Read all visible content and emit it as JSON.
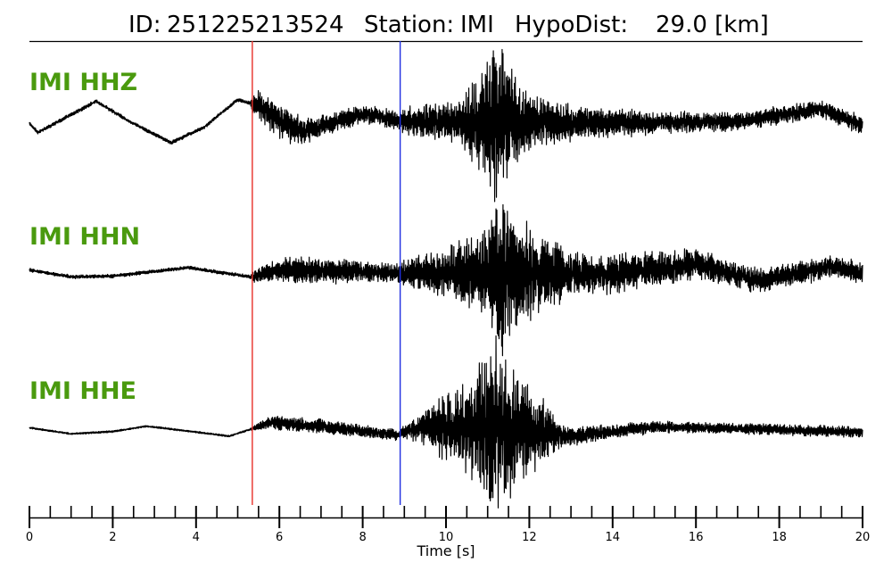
{
  "title": {
    "id_label": "ID:",
    "id_value": "251225213524",
    "station_label": "Station:",
    "station_value": "IMI",
    "hypo_label": "HypoDist:",
    "hypo_value": "29.0 [km]"
  },
  "colors": {
    "label": "#4a9a0e",
    "trace": "#000000",
    "p_pick": "#e8302a",
    "s_pick": "#1f2fe0"
  },
  "chart_data": {
    "type": "line",
    "xlabel": "Time [s]",
    "xlim": [
      0,
      20
    ],
    "major_ticks": [
      0,
      2,
      4,
      6,
      8,
      10,
      12,
      14,
      16,
      18,
      20
    ],
    "minor_tick_step": 0.5,
    "grid": false,
    "picks": [
      {
        "phase": "P",
        "time": 5.35,
        "color": "#e8302a"
      },
      {
        "phase": "S",
        "time": 8.9,
        "color": "#1f2fe0"
      }
    ],
    "series": [
      {
        "name": "IMI HHZ",
        "envelope": [
          [
            0,
            0.02
          ],
          [
            5.3,
            0.02
          ],
          [
            5.4,
            0.16
          ],
          [
            6.2,
            0.2
          ],
          [
            7,
            0.12
          ],
          [
            8.8,
            0.1
          ],
          [
            9,
            0.16
          ],
          [
            10.2,
            0.22
          ],
          [
            10.8,
            0.5
          ],
          [
            11.2,
            1.0
          ],
          [
            11.6,
            0.55
          ],
          [
            12.2,
            0.3
          ],
          [
            13,
            0.2
          ],
          [
            15,
            0.12
          ],
          [
            17,
            0.1
          ],
          [
            20,
            0.1
          ]
        ],
        "long_period": [
          [
            0,
            0
          ],
          [
            0.2,
            -0.12
          ],
          [
            0.8,
            0.05
          ],
          [
            1.6,
            0.28
          ],
          [
            2.4,
            0.02
          ],
          [
            3.4,
            -0.25
          ],
          [
            4.2,
            -0.05
          ],
          [
            5.0,
            0.3
          ],
          [
            5.5,
            0.22
          ],
          [
            6.5,
            -0.12
          ],
          [
            8.0,
            0.12
          ],
          [
            9.0,
            0.02
          ],
          [
            12.0,
            0.02
          ],
          [
            14.0,
            0.0
          ],
          [
            17.0,
            0.02
          ],
          [
            19.0,
            0.18
          ],
          [
            20.0,
            -0.03
          ]
        ]
      },
      {
        "name": "IMI HHN",
        "envelope": [
          [
            0,
            0.02
          ],
          [
            5.3,
            0.02
          ],
          [
            5.4,
            0.08
          ],
          [
            6.5,
            0.16
          ],
          [
            8.8,
            0.1
          ],
          [
            9,
            0.14
          ],
          [
            10.2,
            0.3
          ],
          [
            11,
            0.55
          ],
          [
            11.3,
            1.0
          ],
          [
            11.8,
            0.62
          ],
          [
            12.4,
            0.42
          ],
          [
            13.2,
            0.22
          ],
          [
            15,
            0.2
          ],
          [
            16,
            0.18
          ],
          [
            17,
            0.14
          ],
          [
            20,
            0.12
          ]
        ],
        "long_period": [
          [
            0,
            0.04
          ],
          [
            1,
            -0.05
          ],
          [
            2,
            -0.04
          ],
          [
            3,
            0.02
          ],
          [
            3.8,
            0.07
          ],
          [
            5.3,
            -0.05
          ],
          [
            6,
            0.04
          ],
          [
            9,
            0.0
          ],
          [
            12,
            0.0
          ],
          [
            14,
            -0.02
          ],
          [
            16,
            0.12
          ],
          [
            17.5,
            -0.1
          ],
          [
            19.2,
            0.08
          ],
          [
            20,
            0.0
          ]
        ]
      },
      {
        "name": "IMI HHE",
        "envelope": [
          [
            0,
            0.01
          ],
          [
            5.3,
            0.01
          ],
          [
            5.4,
            0.03
          ],
          [
            6,
            0.09
          ],
          [
            7,
            0.08
          ],
          [
            8.8,
            0.06
          ],
          [
            9,
            0.07
          ],
          [
            9.8,
            0.3
          ],
          [
            10.6,
            0.55
          ],
          [
            11.2,
            1.0
          ],
          [
            11.6,
            0.7
          ],
          [
            12.2,
            0.42
          ],
          [
            12.8,
            0.12
          ],
          [
            14,
            0.08
          ],
          [
            16,
            0.06
          ],
          [
            20,
            0.06
          ]
        ],
        "long_period": [
          [
            0,
            0.03
          ],
          [
            1,
            -0.05
          ],
          [
            2,
            -0.02
          ],
          [
            2.8,
            0.05
          ],
          [
            3.6,
            0.0
          ],
          [
            4.8,
            -0.08
          ],
          [
            5.8,
            0.1
          ],
          [
            7,
            0.05
          ],
          [
            8.8,
            -0.06
          ],
          [
            9.5,
            0.05
          ],
          [
            11,
            0.0
          ],
          [
            12,
            0.0
          ],
          [
            13,
            -0.08
          ],
          [
            15,
            0.04
          ],
          [
            17,
            0.02
          ],
          [
            20,
            -0.03
          ]
        ]
      }
    ]
  }
}
